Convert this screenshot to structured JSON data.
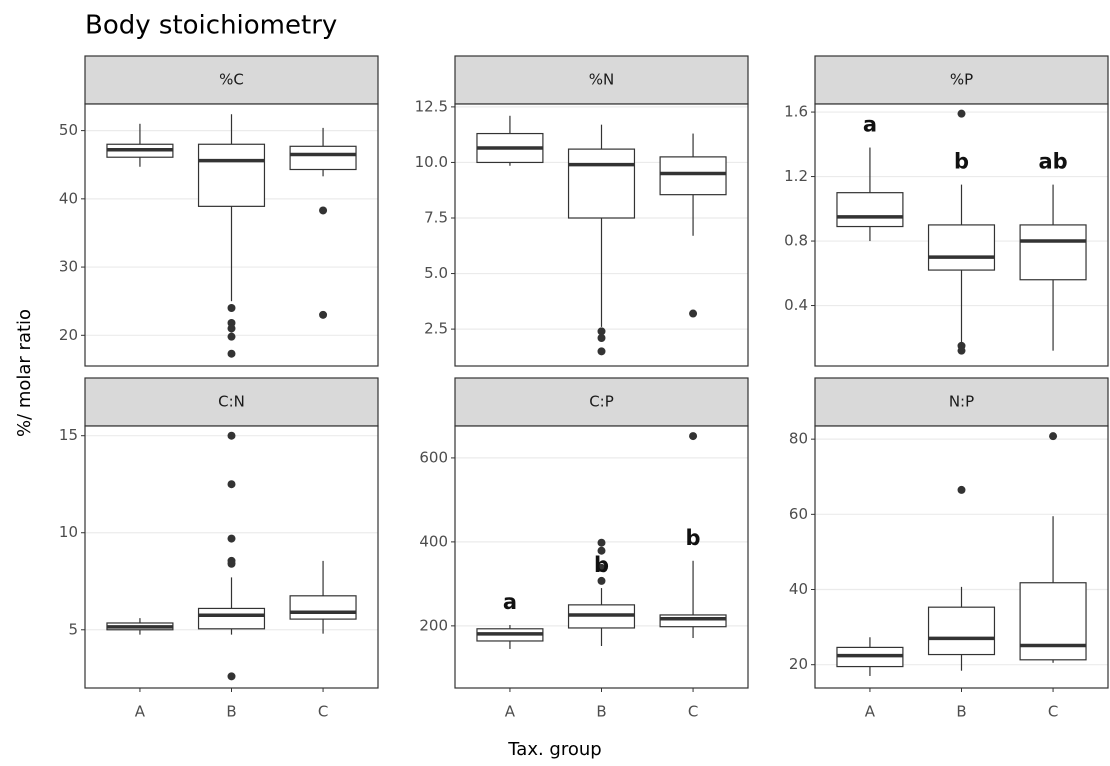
{
  "title": "Body stoichiometry",
  "xlabel": "Tax. group",
  "ylabel": "%/ molar ratio",
  "categories": [
    "A",
    "B",
    "C"
  ],
  "chart_data": [
    {
      "type": "box",
      "title": "%C",
      "ylim": [
        15.5,
        53.9
      ],
      "yticks": [
        20,
        30,
        40,
        50
      ],
      "boxes": [
        {
          "whislo": 44.7,
          "q1": 46.1,
          "med": 47.2,
          "q3": 48,
          "whishi": 51,
          "fliers": []
        },
        {
          "whislo": 25,
          "q1": 38.9,
          "med": 45.6,
          "q3": 48,
          "whishi": 52.4,
          "fliers": [
            24,
            21.8,
            21,
            19.8,
            17.3
          ]
        },
        {
          "whislo": 43.3,
          "q1": 44.3,
          "med": 46.5,
          "q3": 47.7,
          "whishi": 50.4,
          "fliers": [
            38.3,
            23
          ]
        }
      ]
    },
    {
      "type": "box",
      "title": "%N",
      "ylim": [
        0.84,
        12.63
      ],
      "yticks": [
        {
          "value": 2.5,
          "label": "2.5"
        },
        {
          "value": 5,
          "label": "5.0"
        },
        {
          "value": 7.5,
          "label": "7.5"
        },
        {
          "value": 10,
          "label": "10.0"
        },
        {
          "value": 12.5,
          "label": "12.5"
        }
      ],
      "boxes": [
        {
          "whislo": 9.85,
          "q1": 10,
          "med": 10.65,
          "q3": 11.3,
          "whishi": 12.1,
          "fliers": []
        },
        {
          "whislo": 2.6,
          "q1": 7.5,
          "med": 9.9,
          "q3": 10.6,
          "whishi": 11.7,
          "fliers": [
            2.4,
            2.1,
            1.5
          ]
        },
        {
          "whislo": 6.7,
          "q1": 8.55,
          "med": 9.5,
          "q3": 10.25,
          "whishi": 11.3,
          "fliers": [
            3.2
          ]
        }
      ]
    },
    {
      "type": "box",
      "title": "%P",
      "ylim": [
        0.025,
        1.65
      ],
      "yticks": [
        0.4,
        0.8,
        1.2,
        1.6
      ],
      "letters": [
        "a",
        "b",
        "ab"
      ],
      "boxes": [
        {
          "whislo": 0.8,
          "q1": 0.89,
          "med": 0.95,
          "q3": 1.1,
          "whishi": 1.38,
          "fliers": []
        },
        {
          "whislo": 0.17,
          "q1": 0.62,
          "med": 0.7,
          "q3": 0.9,
          "whishi": 1.15,
          "fliers": [
            1.59,
            0.15,
            0.12
          ]
        },
        {
          "whislo": 0.12,
          "q1": 0.56,
          "med": 0.8,
          "q3": 0.9,
          "whishi": 1.15,
          "fliers": []
        }
      ]
    },
    {
      "type": "box",
      "title": "C:N",
      "ylim": [
        2,
        15.5
      ],
      "yticks": [
        5,
        10,
        15
      ],
      "boxes": [
        {
          "whislo": 4.75,
          "q1": 5,
          "med": 5.15,
          "q3": 5.35,
          "whishi": 5.6,
          "fliers": []
        },
        {
          "whislo": 4.75,
          "q1": 5.05,
          "med": 5.75,
          "q3": 6.1,
          "whishi": 7.7,
          "fliers": [
            15,
            12.5,
            9.7,
            8.55,
            8.4,
            2.6
          ]
        },
        {
          "whislo": 4.8,
          "q1": 5.55,
          "med": 5.9,
          "q3": 6.75,
          "whishi": 8.55,
          "fliers": []
        }
      ]
    },
    {
      "type": "box",
      "title": "C:P",
      "ylim": [
        52,
        676
      ],
      "yticks": [
        200,
        400,
        600
      ],
      "letters": [
        "a",
        "b",
        "b"
      ],
      "boxes": [
        {
          "whislo": 145,
          "q1": 164,
          "med": 181,
          "q3": 193,
          "whishi": 202,
          "fliers": []
        },
        {
          "whislo": 152,
          "q1": 195,
          "med": 226,
          "q3": 250,
          "whishi": 290,
          "fliers": [
            398,
            379,
            338,
            307
          ]
        },
        {
          "whislo": 171,
          "q1": 198,
          "med": 217,
          "q3": 226,
          "whishi": 355,
          "fliers": [
            652
          ]
        }
      ]
    },
    {
      "type": "box",
      "title": "N:P",
      "ylim": [
        13.8,
        83.5
      ],
      "yticks": [
        20,
        40,
        60,
        80
      ],
      "boxes": [
        {
          "whislo": 17,
          "q1": 19.5,
          "med": 22.4,
          "q3": 24.6,
          "whishi": 27.3,
          "fliers": []
        },
        {
          "whislo": 18.4,
          "q1": 22.7,
          "med": 27,
          "q3": 35.3,
          "whishi": 40.7,
          "fliers": [
            66.5
          ]
        },
        {
          "whislo": 20.5,
          "q1": 21.3,
          "med": 25.1,
          "q3": 41.8,
          "whishi": 59.5,
          "fliers": [
            80.8
          ]
        }
      ]
    }
  ]
}
